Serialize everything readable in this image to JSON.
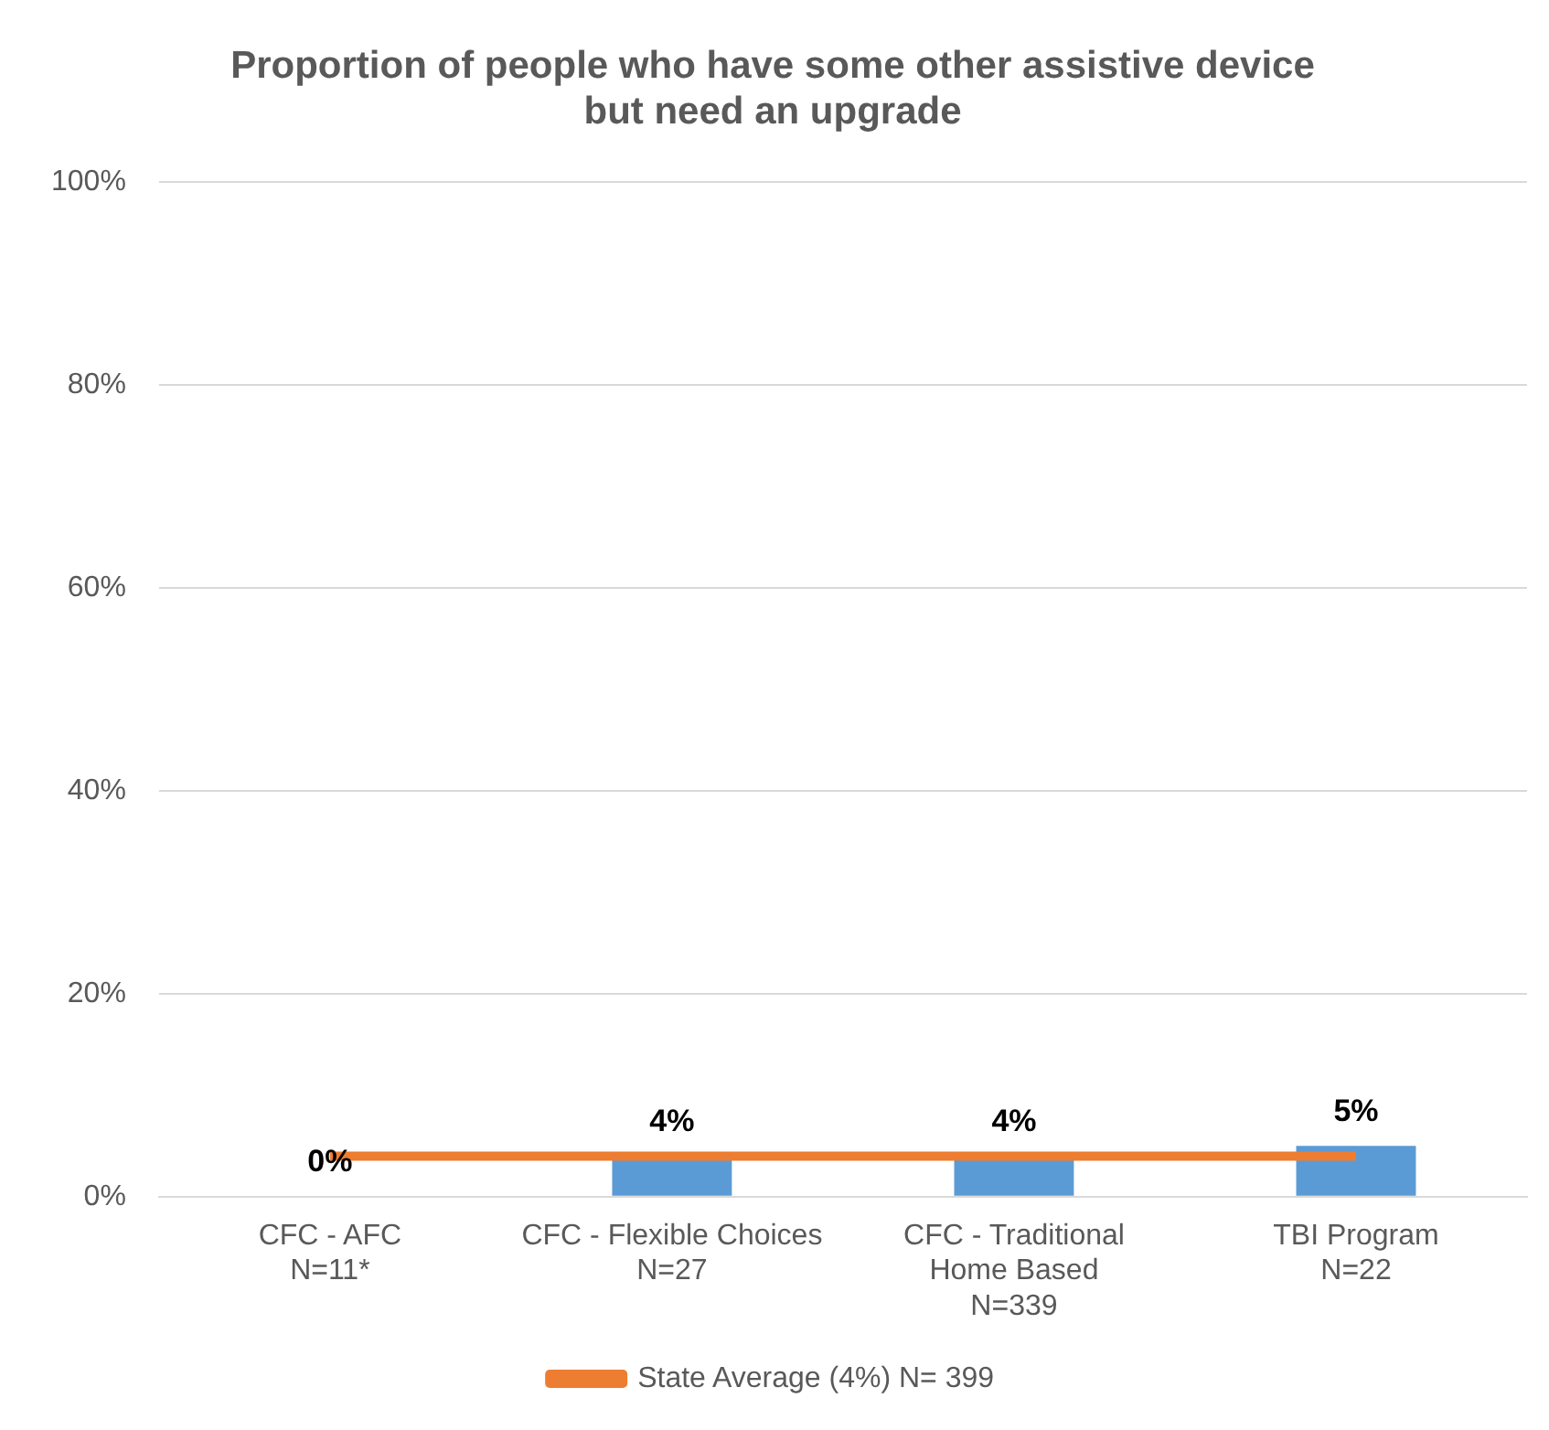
{
  "chart_data": {
    "type": "bar",
    "title": "Proportion of people who have some other assistive device\nbut need an upgrade",
    "categories": [
      "CFC - AFC\nN=11*",
      "CFC - Flexible Choices\nN=27",
      "CFC - Traditional\nHome Based\nN=339",
      "TBI Program\nN=22"
    ],
    "series": [
      {
        "color": "#5b9bd5",
        "values": [
          0,
          4,
          4,
          5
        ],
        "value_labels": [
          "0%",
          "4%",
          "4%",
          "5%"
        ]
      },
      {
        "type": "line",
        "name": "State Average (4%) N= 399",
        "color": "#ed7d31",
        "values": [
          4,
          4,
          4,
          4
        ],
        "marker": "none"
      }
    ],
    "ylim": [
      0,
      100
    ],
    "yticks": [
      {
        "value": 0,
        "label": "0%"
      },
      {
        "value": 20,
        "label": "20%"
      },
      {
        "value": 40,
        "label": "40%"
      },
      {
        "value": 60,
        "label": "60%"
      },
      {
        "value": 80,
        "label": "80%"
      },
      {
        "value": 100,
        "label": "100%"
      }
    ],
    "grid": "y",
    "legend": "bottom"
  }
}
